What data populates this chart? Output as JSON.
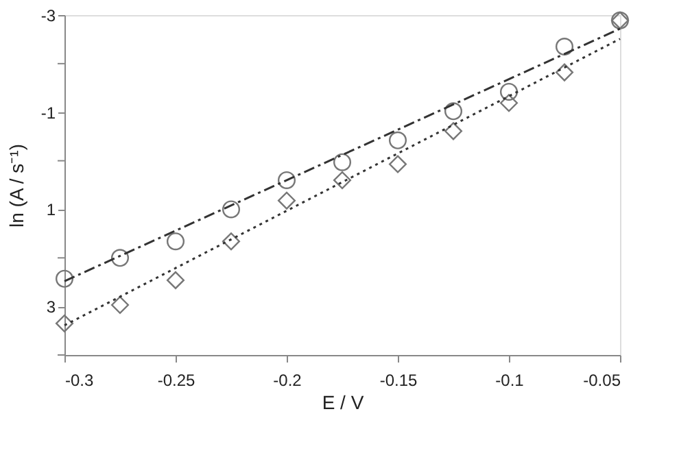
{
  "chart_data": {
    "type": "scatter",
    "xlabel": "E / V",
    "ylabel": "ln (A / s⁻¹)",
    "xlim": [
      -0.3,
      -0.05
    ],
    "xticks": [
      -0.3,
      -0.25,
      -0.2,
      -0.15,
      -0.1,
      -0.05
    ],
    "ylim": [
      4,
      -3
    ],
    "yticks": [
      -3,
      {
        "value": -2,
        "label": null
      },
      -1,
      {
        "value": 0,
        "label": null
      },
      1,
      {
        "value": 2,
        "label": null
      },
      3,
      {
        "value": 4,
        "label": null
      }
    ],
    "grid": false,
    "series": [
      {
        "marker": "circle",
        "color": "#777777",
        "x": [
          -0.3,
          -0.275,
          -0.25,
          -0.225,
          -0.2,
          -0.175,
          -0.15,
          -0.125,
          -0.1,
          -0.075,
          -0.05
        ],
        "values": [
          2.43,
          2.0,
          1.66,
          1.0,
          0.4,
          0.03,
          -0.42,
          -1.02,
          -1.42,
          -2.35,
          -2.89
        ]
      },
      {
        "marker": "diamond",
        "color": "#777777",
        "x": [
          -0.3,
          -0.275,
          -0.25,
          -0.225,
          -0.2,
          -0.175,
          -0.15,
          -0.125,
          -0.1,
          -0.075,
          -0.05
        ],
        "values": [
          3.35,
          2.97,
          2.46,
          1.66,
          0.82,
          0.4,
          0.07,
          -0.61,
          -1.19,
          -1.82,
          -2.89
        ]
      },
      {
        "type": "line",
        "line_style": "dashed",
        "color": "#333333",
        "x": [
          -0.3,
          -0.05
        ],
        "values": [
          2.48,
          -2.72
        ]
      },
      {
        "type": "line",
        "line_style": "dotted",
        "color": "#333333",
        "x": [
          -0.3,
          -0.05
        ],
        "values": [
          3.39,
          -2.51
        ]
      }
    ]
  }
}
